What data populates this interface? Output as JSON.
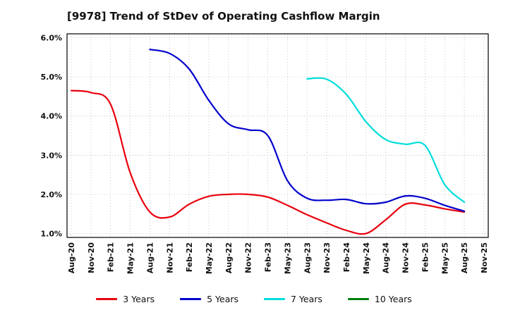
{
  "chart_data": {
    "type": "line",
    "title": "[9978]  Trend of StDev of Operating Cashflow Margin",
    "xlabel": "",
    "ylabel": "",
    "ylim": [
      0.9,
      6.1
    ],
    "y_ticks": [
      "1.0%",
      "2.0%",
      "3.0%",
      "4.0%",
      "5.0%",
      "6.0%"
    ],
    "grid": "dotted",
    "legend_position": "bottom",
    "categories": [
      "Aug-20",
      "Nov-20",
      "Feb-21",
      "May-21",
      "Aug-21",
      "Nov-21",
      "Feb-22",
      "May-22",
      "Aug-22",
      "Nov-22",
      "Feb-23",
      "May-23",
      "Aug-23",
      "Nov-23",
      "Feb-24",
      "May-24",
      "Aug-24",
      "Nov-24",
      "Feb-25",
      "May-25",
      "Aug-25",
      "Nov-25"
    ],
    "series": [
      {
        "name": "3 Years",
        "color": "#e8000d",
        "values": [
          4.65,
          4.6,
          4.3,
          2.55,
          1.55,
          1.42,
          1.75,
          1.95,
          2.0,
          2.0,
          1.93,
          1.72,
          1.48,
          1.27,
          1.08,
          1.0,
          1.35,
          1.75,
          1.73,
          1.63,
          1.55,
          null
        ]
      },
      {
        "name": "5 Years",
        "color": "#0000cd",
        "values": [
          null,
          null,
          null,
          null,
          5.7,
          5.6,
          5.2,
          4.4,
          3.8,
          3.65,
          3.5,
          2.35,
          1.9,
          1.85,
          1.87,
          1.76,
          1.8,
          1.96,
          1.9,
          1.72,
          1.57,
          null
        ]
      },
      {
        "name": "7 Years",
        "color": "#00dddd",
        "values": [
          null,
          null,
          null,
          null,
          null,
          null,
          null,
          null,
          null,
          null,
          null,
          null,
          4.95,
          4.94,
          4.55,
          3.85,
          3.4,
          3.28,
          3.25,
          2.25,
          1.8,
          null
        ]
      },
      {
        "name": "10 Years",
        "color": "#007f0e",
        "values": [
          null,
          null,
          null,
          null,
          null,
          null,
          null,
          null,
          null,
          null,
          null,
          null,
          null,
          null,
          null,
          null,
          null,
          null,
          null,
          null,
          null,
          null
        ]
      }
    ]
  }
}
